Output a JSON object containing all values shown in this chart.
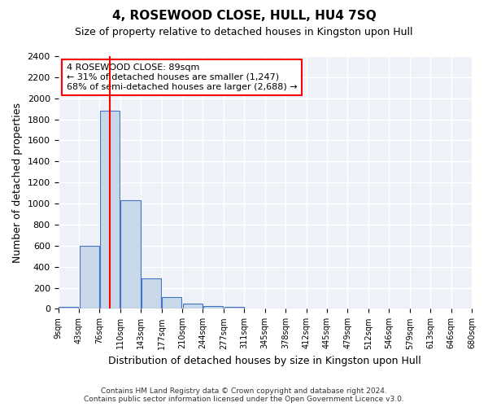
{
  "title": "4, ROSEWOOD CLOSE, HULL, HU4 7SQ",
  "subtitle": "Size of property relative to detached houses in Kingston upon Hull",
  "xlabel": "Distribution of detached houses by size in Kingston upon Hull",
  "ylabel": "Number of detached properties",
  "footer_line1": "Contains HM Land Registry data © Crown copyright and database right 2024.",
  "footer_line2": "Contains public sector information licensed under the Open Government Licence v3.0.",
  "bin_labels": [
    "9sqm",
    "43sqm",
    "76sqm",
    "110sqm",
    "143sqm",
    "177sqm",
    "210sqm",
    "244sqm",
    "277sqm",
    "311sqm",
    "345sqm",
    "378sqm",
    "412sqm",
    "445sqm",
    "479sqm",
    "512sqm",
    "546sqm",
    "579sqm",
    "613sqm",
    "646sqm",
    "680sqm"
  ],
  "bar_values": [
    20,
    600,
    1880,
    1030,
    290,
    115,
    50,
    28,
    20,
    0,
    0,
    0,
    0,
    0,
    0,
    0,
    0,
    0,
    0,
    0
  ],
  "bar_color": "#c8d8e8",
  "bar_edge_color": "#4472c4",
  "background_color": "#eef2f8",
  "grid_color": "#ffffff",
  "red_line_color": "#ff0000",
  "ylim": [
    0,
    2400
  ],
  "yticks": [
    0,
    200,
    400,
    600,
    800,
    1000,
    1200,
    1400,
    1600,
    1800,
    2000,
    2200,
    2400
  ],
  "annotation_text": "4 ROSEWOOD CLOSE: 89sqm\n← 31% of detached houses are smaller (1,247)\n68% of semi-detached houses are larger (2,688) →",
  "property_bin_index": 2
}
